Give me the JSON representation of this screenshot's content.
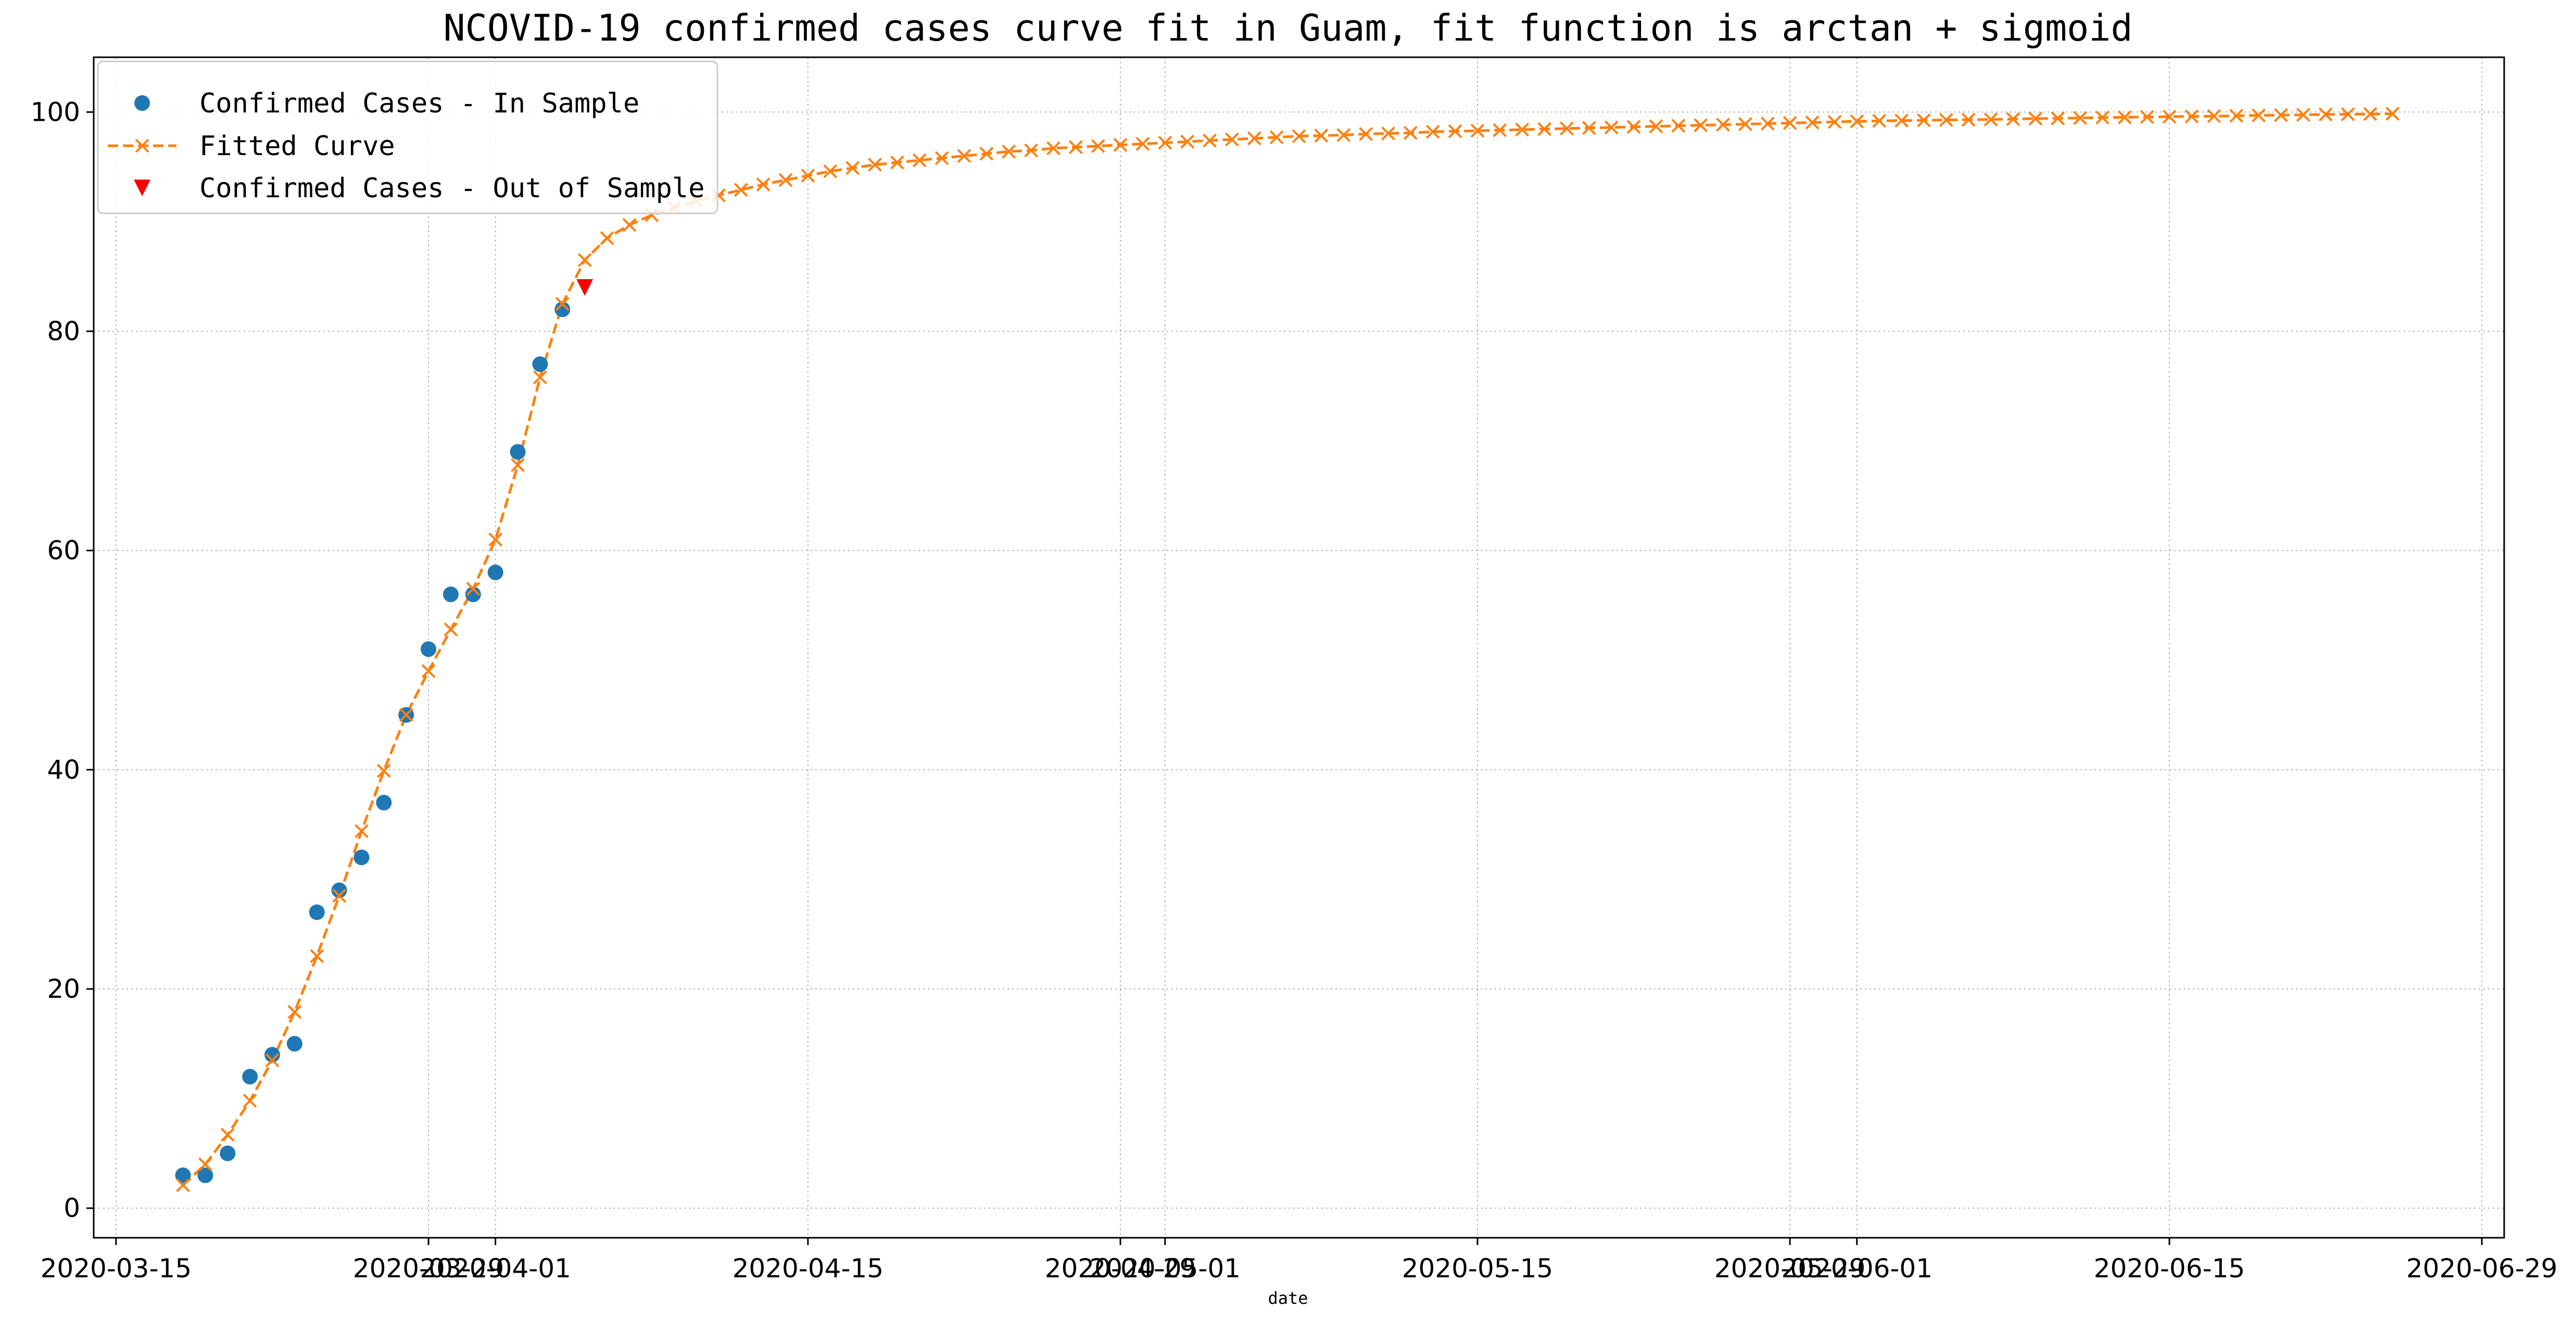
{
  "chart_data": {
    "type": "line",
    "title": "NCOVID-19 confirmed cases curve fit in Guam, fit function is arctan + sigmoid",
    "xlabel": "date",
    "ylabel": "",
    "x_tick_labels": [
      {
        "date": "2020-03-15",
        "label": "2020-03-15"
      },
      {
        "date": "2020-03-29",
        "label": "2020-03-29"
      },
      {
        "date": "2020-04-01",
        "label": "2020-04-01"
      },
      {
        "date": "2020-04-15",
        "label": "2020-04-15"
      },
      {
        "date": "2020-04-29",
        "label": "2020-04-29"
      },
      {
        "date": "2020-05-01",
        "label": "2020-05-01"
      },
      {
        "date": "2020-05-15",
        "label": "2020-05-15"
      },
      {
        "date": "2020-05-29",
        "label": "2020-05-29"
      },
      {
        "date": "2020-06-01",
        "label": "2020-06-01"
      },
      {
        "date": "2020-06-15",
        "label": "2020-06-15"
      },
      {
        "date": "2020-06-29",
        "label": "2020-06-29"
      }
    ],
    "y_ticks": [
      0,
      20,
      40,
      60,
      80,
      100
    ],
    "xlim": [
      "2020-03-14",
      "2020-06-30"
    ],
    "ylim": [
      -2.7,
      105
    ],
    "grid": true,
    "legend_position": "upper-left",
    "series": [
      {
        "name": "Confirmed Cases - In Sample",
        "style": "markers-circle",
        "color": "#1f77b4",
        "x": [
          "2020-03-18",
          "2020-03-19",
          "2020-03-20",
          "2020-03-21",
          "2020-03-22",
          "2020-03-23",
          "2020-03-24",
          "2020-03-25",
          "2020-03-26",
          "2020-03-27",
          "2020-03-28",
          "2020-03-29",
          "2020-03-30",
          "2020-03-31",
          "2020-04-01",
          "2020-04-02",
          "2020-04-03",
          "2020-04-04"
        ],
        "y": [
          3,
          3,
          5,
          12,
          14,
          15,
          27,
          29,
          32,
          37,
          45,
          51,
          56,
          56,
          58,
          69,
          77,
          82
        ]
      },
      {
        "name": "Fitted Curve",
        "style": "dashed-line-x-markers",
        "color": "#ff7f0e",
        "x_start": "2020-03-18",
        "x_end": "2020-06-25",
        "y": [
          2.1,
          4.0,
          6.7,
          9.8,
          13.5,
          17.9,
          23.0,
          28.5,
          34.4,
          39.9,
          45.0,
          49.0,
          52.8,
          56.5,
          61.0,
          67.8,
          75.8,
          82.5,
          86.5,
          88.5,
          89.7,
          90.6,
          91.3,
          91.9,
          92.4,
          92.9,
          93.4,
          93.8,
          94.2,
          94.6,
          94.9,
          95.2,
          95.4,
          95.6,
          95.8,
          96.0,
          96.2,
          96.4,
          96.5,
          96.7,
          96.8,
          96.9,
          97.0,
          97.1,
          97.2,
          97.3,
          97.4,
          97.5,
          97.6,
          97.7,
          97.8,
          97.85,
          97.9,
          98.0,
          98.05,
          98.1,
          98.2,
          98.25,
          98.3,
          98.35,
          98.4,
          98.45,
          98.5,
          98.55,
          98.6,
          98.65,
          98.7,
          98.75,
          98.8,
          98.85,
          98.9,
          98.95,
          99.0,
          99.05,
          99.1,
          99.15,
          99.2,
          99.22,
          99.25,
          99.28,
          99.3,
          99.33,
          99.36,
          99.4,
          99.43,
          99.46,
          99.5,
          99.52,
          99.55,
          99.58,
          99.6,
          99.63,
          99.66,
          99.7,
          99.72,
          99.75,
          99.78,
          99.8,
          99.82,
          99.85
        ]
      },
      {
        "name": "Confirmed Cases - Out of Sample",
        "style": "markers-triangle-down",
        "color": "#ff0000",
        "x": [
          "2020-04-05"
        ],
        "y": [
          84
        ]
      }
    ]
  }
}
